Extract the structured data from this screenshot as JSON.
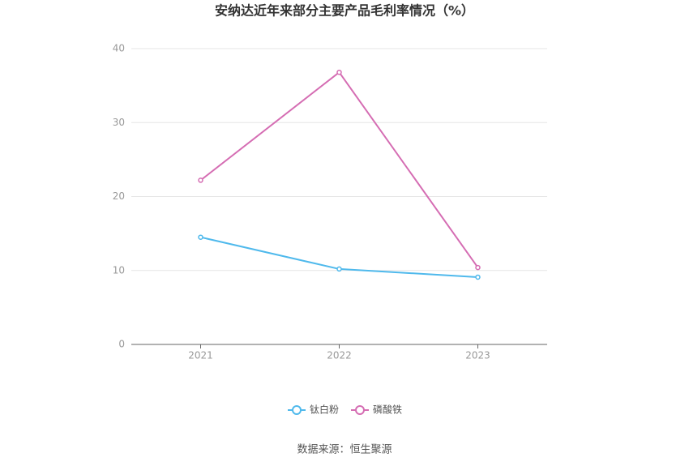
{
  "chart_data": {
    "type": "line",
    "title": "安纳达近年来部分主要产品毛利率情况（%）",
    "categories": [
      "2021",
      "2022",
      "2023"
    ],
    "series": [
      {
        "name": "钛白粉",
        "color": "#4fb9ec",
        "values": [
          14.5,
          10.2,
          9.1
        ]
      },
      {
        "name": "磷酸铁",
        "color": "#d56db3",
        "values": [
          22.2,
          36.8,
          10.4
        ]
      }
    ],
    "ylim": [
      0,
      40
    ],
    "yticks": [
      0,
      10,
      20,
      30,
      40
    ],
    "grid": true,
    "source": "数据来源：恒生聚源"
  }
}
